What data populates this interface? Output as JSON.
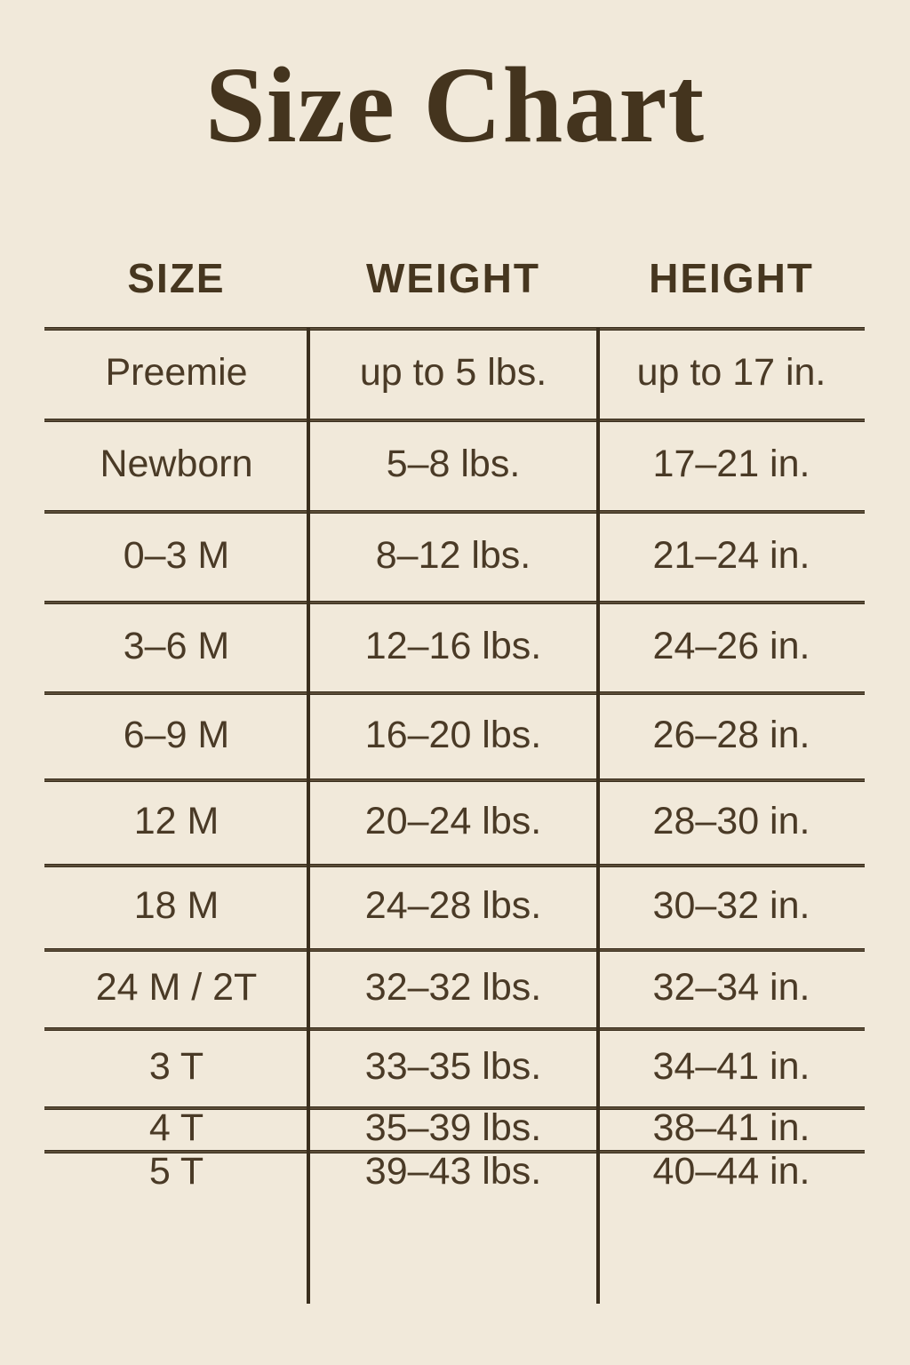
{
  "title": "Size Chart",
  "colors": {
    "background": "#f1e9da",
    "title_text": "#44341e",
    "body_text": "#4a3a26",
    "line": "#3a2e1d"
  },
  "table": {
    "headers": [
      "SIZE",
      "WEIGHT",
      "HEIGHT"
    ],
    "rows": [
      {
        "size": "Preemie",
        "weight": "up to 5 lbs.",
        "height": "up to 17 in."
      },
      {
        "size": "Newborn",
        "weight": "5–8 lbs.",
        "height": "17–21 in."
      },
      {
        "size": "0–3 M",
        "weight": "8–12 lbs.",
        "height": "21–24 in."
      },
      {
        "size": "3–6 M",
        "weight": "12–16 lbs.",
        "height": "24–26 in."
      },
      {
        "size": "6–9 M",
        "weight": "16–20 lbs.",
        "height": "26–28 in."
      },
      {
        "size": "12 M",
        "weight": "20–24 lbs.",
        "height": "28–30 in."
      },
      {
        "size": "18 M",
        "weight": "24–28 lbs.",
        "height": "30–32 in."
      },
      {
        "size": "24 M / 2T",
        "weight": "32–32 lbs.",
        "height": "32–34 in."
      },
      {
        "size": "3 T",
        "weight": "33–35 lbs.",
        "height": "34–41 in."
      },
      {
        "size": "4 T",
        "weight": "35–39 lbs.",
        "height": "38–41 in."
      },
      {
        "size": "5 T",
        "weight": "39–43 lbs.",
        "height": "40–44 in."
      }
    ]
  },
  "chart_data": {
    "type": "table",
    "title": "Size Chart",
    "columns": [
      "SIZE",
      "WEIGHT",
      "HEIGHT"
    ],
    "rows": [
      [
        "Preemie",
        "up to 5 lbs.",
        "up to 17 in."
      ],
      [
        "Newborn",
        "5–8 lbs.",
        "17–21 in."
      ],
      [
        "0–3 M",
        "8–12 lbs.",
        "21–24 in."
      ],
      [
        "3–6 M",
        "12–16 lbs.",
        "24–26 in."
      ],
      [
        "6–9 M",
        "16–20 lbs.",
        "26–28 in."
      ],
      [
        "12 M",
        "20–24 lbs.",
        "28–30 in."
      ],
      [
        "18 M",
        "24–28 lbs.",
        "30–32 in."
      ],
      [
        "24 M / 2T",
        "32–32 lbs.",
        "32–34 in."
      ],
      [
        "3 T",
        "33–35 lbs.",
        "34–41 in."
      ],
      [
        "4 T",
        "35–39 lbs.",
        "38–41 in."
      ],
      [
        "5 T",
        "39–43 lbs.",
        "40–44 in."
      ]
    ]
  }
}
